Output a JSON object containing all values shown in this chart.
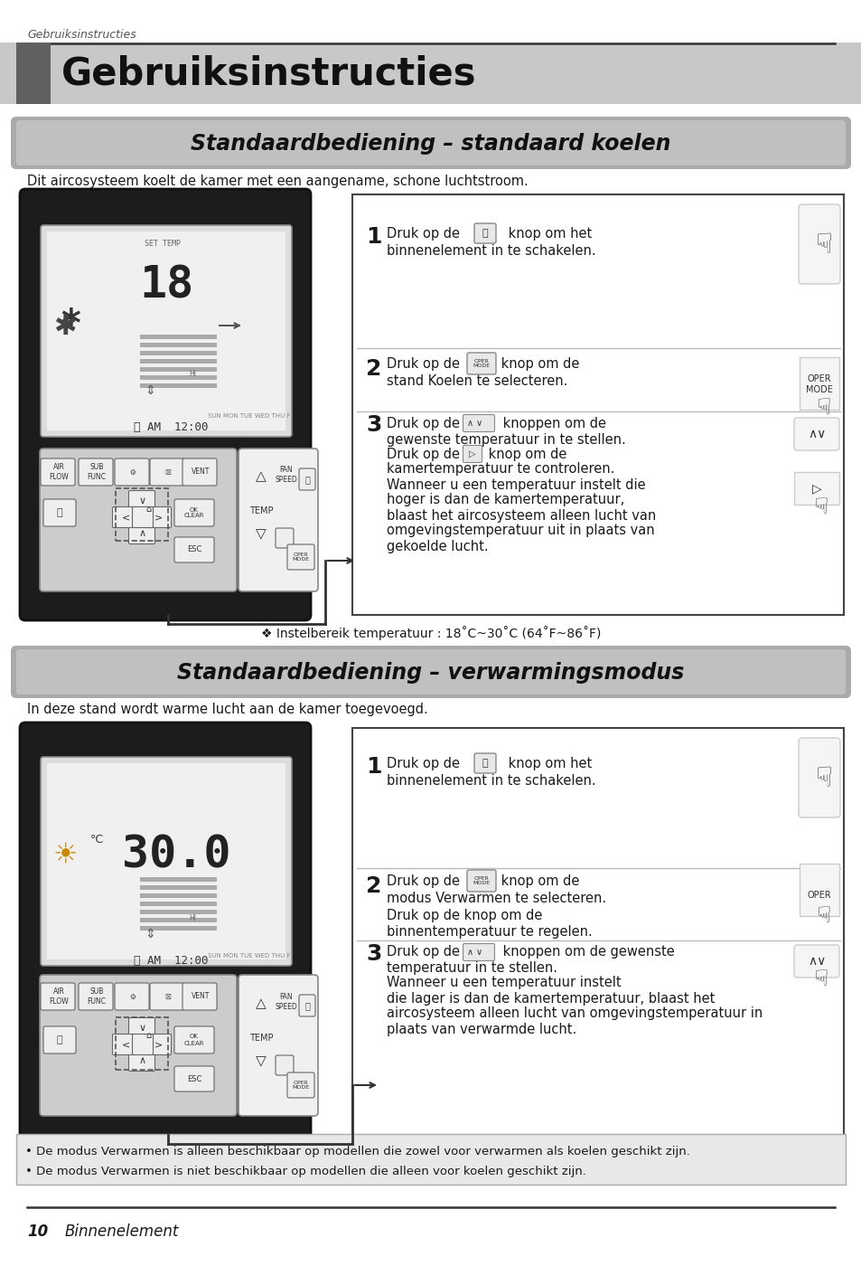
{
  "page_header": "Gebruiksinstructies",
  "main_title": "Gebruiksinstructies",
  "section1_title": "Standaardbediening – standaard koelen",
  "section1_intro": "Dit aircosysteem koelt de kamer met een aangename, schone luchtstroom.",
  "section2_title": "Standaardbediening – verwarmingsmodus",
  "section2_intro": "In deze stand wordt warme lucht aan de kamer toegevoegd.",
  "step1_line1": "Druk op de    knop om het",
  "step1_line2": "binnenelement in te schakelen.",
  "step2c_line1": "Druk op de      knop om de",
  "step2c_line2": "stand Koelen te selecteren.",
  "step3c_lines": [
    "Druk op de     knoppen om de",
    "gewenste temperatuur in te stellen.",
    "Druk op de    knop om de",
    "kamertemperatuur te controleren.",
    "Wanneer u een temperatuur instelt die",
    "hoger is dan de kamertemperatuur,",
    "blaast het aircosysteem alleen lucht van",
    "omgevingstemperatuur uit in plaats van",
    "gekoelde lucht."
  ],
  "temp_note": "❖ Instelbereik temperatuur : 18˚C~30˚C (64˚F~86˚F)",
  "step1h_line1": "Druk op de    knop om het",
  "step1h_line2": "binnenelement in te schakelen.",
  "step2h_lines": [
    "Druk op de      knop om de",
    "modus Verwarmen te selecteren.",
    "Druk op de knop om de",
    "binnentemperatuur te regelen."
  ],
  "step3h_lines": [
    "Druk op de      knoppen om de gewenste",
    "temperatuur in te stellen.",
    "Wanneer u een temperatuur instelt",
    "die lager is dan de kamertemperatuur, blaast het",
    "aircosysteem alleen lucht van omgevingstemperatuur in",
    "plaats van verwarmde lucht."
  ],
  "note_lines": [
    "• De modus Verwarmen is alleen beschikbaar op modellen die zowel voor verwarmen als koelen geschikt zijn.",
    "• De modus Verwarmen is niet beschikbaar op modellen die alleen voor koelen geschikt zijn."
  ],
  "footer_page": "10",
  "footer_text": "Binnenelement"
}
